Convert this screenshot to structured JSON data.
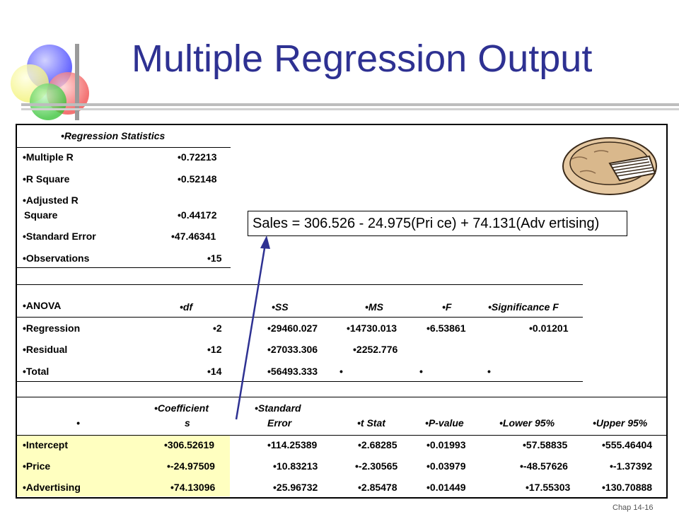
{
  "slide": {
    "title": "Multiple Regression Output",
    "equation": "Sales = 306.526 - 24.975(Pri ce) + 74.131(Adv ertising)",
    "footer": "Chap 14-16",
    "colors": {
      "title": "#2e3192",
      "highlight": "#ffffc0",
      "arrow": "#2e3192"
    },
    "icons": [
      "decorative-circles-icon",
      "pie-icon"
    ]
  },
  "stats": {
    "header": "•Regression  Statistics",
    "rows": [
      {
        "label": "•Multiple  R",
        "value": "•0.72213"
      },
      {
        "label": "•R  Square",
        "value": "•0.52148"
      },
      {
        "label1": "•Adjusted  R",
        "label2": "Square",
        "value": "•0.44172"
      },
      {
        "label": "•Standard  Error",
        "value": "•47.46341"
      },
      {
        "label": "•Observations",
        "value": "•15"
      }
    ]
  },
  "anova": {
    "label": "•ANOVA",
    "headers": [
      "•df",
      "•SS",
      "•MS",
      "•F",
      "•Significance  F"
    ],
    "rows": [
      {
        "name": "•Regression",
        "df": "•2",
        "ss": "•29460.027",
        "ms": "•14730.013",
        "f": "•6.53861",
        "sig": "•0.01201"
      },
      {
        "name": "•Residual",
        "df": "•12",
        "ss": "•27033.306",
        "ms": "•2252.776",
        "f": "",
        "sig": ""
      },
      {
        "name": "•Total",
        "df": "•14",
        "ss": "•56493.333",
        "ms": "•",
        "f": "•",
        "sig": "•"
      }
    ]
  },
  "coef": {
    "headers": {
      "blank": "•",
      "coef1": "•Coefficient",
      "coef2": "s",
      "se1": "•Standard",
      "se2": "Error",
      "t": "•t  Stat",
      "p": "•P-value",
      "lower": "•Lower  95%",
      "upper": "•Upper  95%"
    },
    "rows": [
      {
        "name": "•Intercept",
        "coef": "•306.52619",
        "se": "•114.25389",
        "t": "•2.68285",
        "p": "•0.01993",
        "lower": "•57.58835",
        "upper": "•555.46404"
      },
      {
        "name": "•Price",
        "coef": "•-24.97509",
        "se": "•10.83213",
        "t": "•-2.30565",
        "p": "•0.03979",
        "lower": "•-48.57626",
        "upper": "•-1.37392"
      },
      {
        "name": "•Advertising",
        "coef": "•74.13096",
        "se": "•25.96732",
        "t": "•2.85478",
        "p": "•0.01449",
        "lower": "•17.55303",
        "upper": "•130.70888"
      }
    ]
  }
}
